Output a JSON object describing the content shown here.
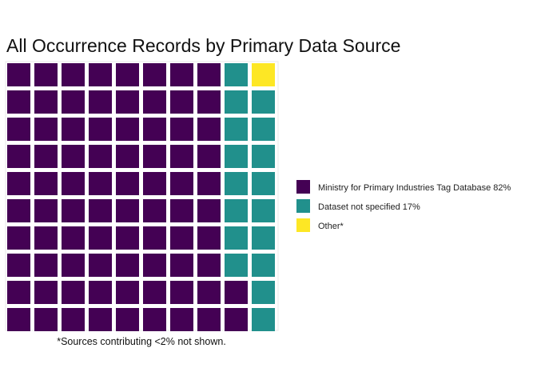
{
  "chart_data": {
    "type": "waffle",
    "title": "All Occurrence Records by Primary Data Source",
    "caption": "*Sources contributing <2% not shown.",
    "grid": {
      "rows": 10,
      "cols": 10
    },
    "fill_order": "column-wise, bottom-to-top",
    "legend_position": "right",
    "series": [
      {
        "name": "Ministry for Primary Industries Tag Database 82%",
        "value": 82,
        "color": "#440154"
      },
      {
        "name": "Dataset not specified 17%",
        "value": 17,
        "color": "#21908C"
      },
      {
        "name": "Other*",
        "value": 1,
        "color": "#FDE725"
      }
    ]
  }
}
